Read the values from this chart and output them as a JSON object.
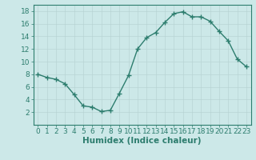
{
  "x": [
    0,
    1,
    2,
    3,
    4,
    5,
    6,
    7,
    8,
    9,
    10,
    11,
    12,
    13,
    14,
    15,
    16,
    17,
    18,
    19,
    20,
    21,
    22,
    23
  ],
  "y": [
    8,
    7.5,
    7.2,
    6.5,
    4.8,
    3.0,
    2.8,
    2.1,
    2.3,
    5.0,
    7.8,
    12.0,
    13.8,
    14.6,
    16.2,
    17.6,
    17.9,
    17.1,
    17.1,
    16.4,
    14.8,
    13.3,
    10.4,
    9.2
  ],
  "line_color": "#2d7d6e",
  "marker": "+",
  "marker_size": 4,
  "bg_color": "#cce8e8",
  "grid_color": "#b8d4d4",
  "xlabel": "Humidex (Indice chaleur)",
  "ylim": [
    0,
    19
  ],
  "xlim": [
    -0.5,
    23.5
  ],
  "yticks": [
    2,
    4,
    6,
    8,
    10,
    12,
    14,
    16,
    18
  ],
  "xticks": [
    0,
    1,
    2,
    3,
    4,
    5,
    6,
    7,
    8,
    9,
    10,
    11,
    12,
    13,
    14,
    15,
    16,
    17,
    18,
    19,
    20,
    21,
    22,
    23
  ],
  "xlabel_fontsize": 7.5,
  "tick_fontsize": 6.5,
  "line_width": 1.0
}
